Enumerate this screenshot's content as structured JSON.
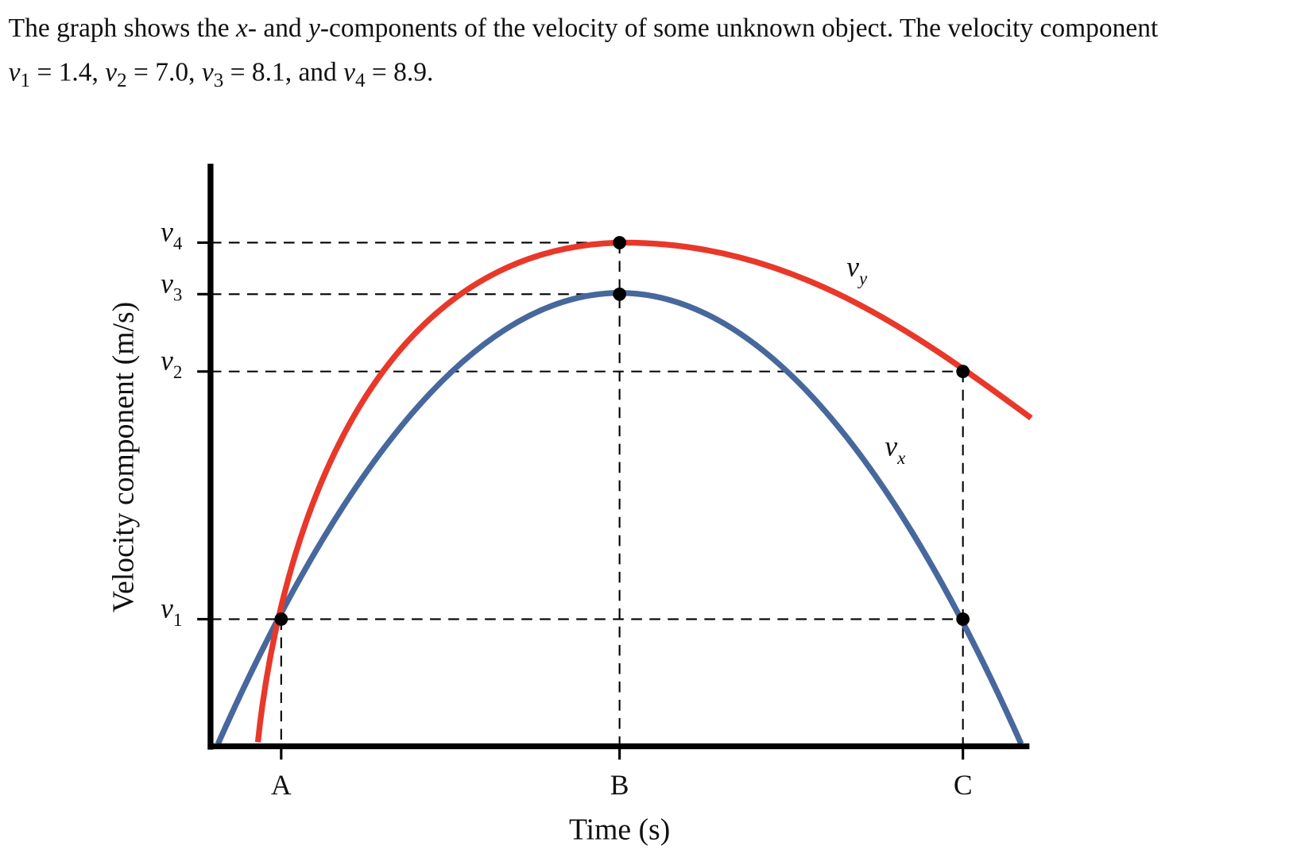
{
  "problem": {
    "line1": [
      {
        "text": "The graph shows the "
      },
      {
        "text": "x",
        "style": "italic"
      },
      {
        "text": "- and "
      },
      {
        "text": "y",
        "style": "italic"
      },
      {
        "text": "-components of the velocity of some unknown object. The velocity component"
      }
    ],
    "line2": [
      {
        "text": "v",
        "style": "italic"
      },
      {
        "text": "1",
        "style": "sub"
      },
      {
        "text": " = 1.4, "
      },
      {
        "text": "v",
        "style": "italic"
      },
      {
        "text": "2",
        "style": "sub"
      },
      {
        "text": " = 7.0, "
      },
      {
        "text": "v",
        "style": "italic"
      },
      {
        "text": "3",
        "style": "sub"
      },
      {
        "text": " = 8.1, and "
      },
      {
        "text": "v",
        "style": "italic"
      },
      {
        "text": "4",
        "style": "sub"
      },
      {
        "text": " = 8.9."
      }
    ]
  },
  "graph": {
    "y_axis_title": "Velocity component (m/s)",
    "x_axis_title": "Time (s)",
    "y_labels": [
      {
        "symbol": "v",
        "subscript": "4"
      },
      {
        "symbol": "v",
        "subscript": "3"
      },
      {
        "symbol": "v",
        "subscript": "2"
      },
      {
        "symbol": "v",
        "subscript": "1"
      }
    ],
    "x_labels": [
      "A",
      "B",
      "C"
    ],
    "curve_labels": [
      {
        "symbol": "v",
        "subscript": "y"
      },
      {
        "symbol": "v",
        "subscript": "x"
      }
    ]
  }
}
